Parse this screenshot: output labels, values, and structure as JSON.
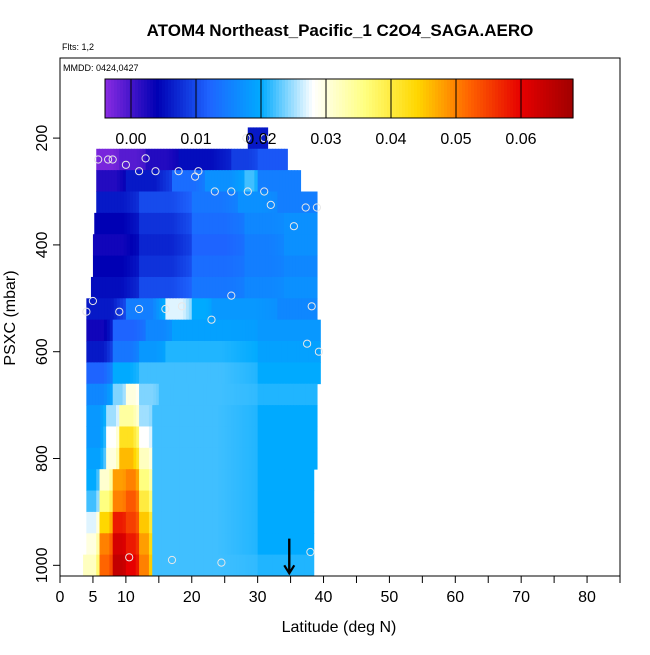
{
  "chart_data": {
    "type": "heatmap",
    "title": "ATOM4 Northeast_Pacific_1 C2O4_SAGA.AERO",
    "subtitle_flights": "Flts: 1,2",
    "subtitle_dates": "MMDD: 0424,0427",
    "xlabel": "Latitude (deg N)",
    "ylabel": "PSXC (mbar)",
    "xlim": [
      0,
      85
    ],
    "ylim": [
      1020,
      50
    ],
    "x_ticks": [
      0,
      5,
      10,
      20,
      30,
      40,
      50,
      60,
      70,
      80
    ],
    "x_tick_labels": [
      "0",
      "5",
      "10",
      "20",
      "30",
      "40",
      "50",
      "60",
      "70",
      "80"
    ],
    "x_minor_ticks": [
      15,
      25,
      35,
      45,
      55,
      65,
      75,
      85
    ],
    "y_ticks": [
      200,
      400,
      600,
      800,
      1000
    ],
    "y_tick_labels": [
      "200",
      "400",
      "600",
      "800",
      "1000"
    ],
    "colorbar": {
      "min": -0.004,
      "max": 0.068,
      "ticks": [
        0.0,
        0.01,
        0.02,
        0.03,
        0.04,
        0.05,
        0.06
      ],
      "tick_labels": [
        "0.00",
        "0.01",
        "0.02",
        "0.03",
        "0.04",
        "0.05",
        "0.06"
      ],
      "colors": [
        "#8a2be2",
        "#0000b4",
        "#1e64ff",
        "#00aaff",
        "#ffffff",
        "#ffff80",
        "#ffd700",
        "#ff6400",
        "#e60000",
        "#a00000"
      ]
    },
    "grid": false,
    "series": [
      {
        "name": "C2O4 curtain profile",
        "rows": [
          {
            "p": 200,
            "lat_min": 28.5,
            "lat_max": 31.5,
            "segs": [
              [
                28.5,
                31.5,
                0.006
              ]
            ]
          },
          {
            "p": 240,
            "lat_min": 5.5,
            "lat_max": 34.5,
            "segs": [
              [
                5.5,
                9,
                -0.003
              ],
              [
                9,
                13,
                -0.001
              ],
              [
                13,
                18,
                0.002
              ],
              [
                18,
                26,
                0.005
              ],
              [
                26,
                30,
                0.009
              ],
              [
                30,
                34.5,
                0.011
              ]
            ]
          },
          {
            "p": 280,
            "lat_min": 5.5,
            "lat_max": 36.5,
            "segs": [
              [
                5.5,
                10,
                0.002
              ],
              [
                10,
                17,
                0.006
              ],
              [
                17,
                22,
                0.013
              ],
              [
                22,
                28,
                0.017
              ],
              [
                28,
                30,
                0.022
              ],
              [
                30,
                36.5,
                0.015
              ]
            ]
          },
          {
            "p": 320,
            "lat_min": 5.5,
            "lat_max": 39,
            "segs": [
              [
                5.5,
                12,
                0.006
              ],
              [
                12,
                20,
                0.01
              ],
              [
                20,
                27,
                0.014
              ],
              [
                27,
                33,
                0.017
              ],
              [
                33,
                39,
                0.015
              ]
            ]
          },
          {
            "p": 360,
            "lat_min": 5.2,
            "lat_max": 39,
            "segs": [
              [
                5.2,
                12,
                0.004
              ],
              [
                12,
                20,
                0.008
              ],
              [
                20,
                28,
                0.013
              ],
              [
                28,
                34,
                0.016
              ],
              [
                34,
                39,
                0.017
              ]
            ]
          },
          {
            "p": 400,
            "lat_min": 5.0,
            "lat_max": 39,
            "segs": [
              [
                5,
                12,
                0.003
              ],
              [
                12,
                20,
                0.007
              ],
              [
                20,
                28,
                0.012
              ],
              [
                28,
                34,
                0.015
              ],
              [
                34,
                39,
                0.017
              ]
            ]
          },
          {
            "p": 440,
            "lat_min": 5.0,
            "lat_max": 39,
            "segs": [
              [
                5,
                12,
                0.004
              ],
              [
                12,
                20,
                0.008
              ],
              [
                20,
                28,
                0.013
              ],
              [
                28,
                34,
                0.015
              ],
              [
                34,
                39,
                0.016
              ]
            ]
          },
          {
            "p": 480,
            "lat_min": 4.7,
            "lat_max": 39,
            "segs": [
              [
                4.7,
                12,
                0.005
              ],
              [
                12,
                20,
                0.01
              ],
              [
                20,
                28,
                0.014
              ],
              [
                28,
                34,
                0.016
              ],
              [
                34,
                39,
                0.017
              ]
            ]
          },
          {
            "p": 520,
            "lat_min": 4.0,
            "lat_max": 39,
            "segs": [
              [
                4,
                10,
                0.006
              ],
              [
                10,
                16,
                0.015
              ],
              [
                16,
                20,
                0.027
              ],
              [
                20,
                23,
                0.02
              ],
              [
                23,
                33,
                0.018
              ],
              [
                33,
                39,
                0.016
              ]
            ]
          },
          {
            "p": 560,
            "lat_min": 4.0,
            "lat_max": 39.5,
            "segs": [
              [
                4,
                8,
                0.003
              ],
              [
                8,
                13,
                0.012
              ],
              [
                13,
                17,
                0.016
              ],
              [
                17,
                30,
                0.019
              ],
              [
                30,
                39.5,
                0.018
              ]
            ]
          },
          {
            "p": 600,
            "lat_min": 4.0,
            "lat_max": 39.5,
            "segs": [
              [
                4,
                8,
                0.006
              ],
              [
                8,
                12,
                0.014
              ],
              [
                12,
                16,
                0.018
              ],
              [
                16,
                30,
                0.021
              ],
              [
                30,
                39.5,
                0.019
              ]
            ]
          },
          {
            "p": 640,
            "lat_min": 4.0,
            "lat_max": 39.5,
            "segs": [
              [
                4,
                8,
                0.012
              ],
              [
                8,
                12,
                0.02
              ],
              [
                12,
                16,
                0.022
              ],
              [
                16,
                30,
                0.022
              ],
              [
                30,
                39.5,
                0.02
              ]
            ]
          },
          {
            "p": 680,
            "lat_min": 4.0,
            "lat_max": 39,
            "segs": [
              [
                4,
                8,
                0.016
              ],
              [
                8,
                10,
                0.024
              ],
              [
                10,
                12,
                0.03
              ],
              [
                12,
                15,
                0.024
              ],
              [
                15,
                30,
                0.022
              ],
              [
                30,
                39,
                0.021
              ]
            ]
          },
          {
            "p": 720,
            "lat_min": 4.0,
            "lat_max": 39,
            "segs": [
              [
                4,
                7,
                0.018
              ],
              [
                7,
                9,
                0.025
              ],
              [
                9,
                12,
                0.034
              ],
              [
                12,
                14,
                0.025
              ],
              [
                14,
                30,
                0.022
              ],
              [
                30,
                39,
                0.02
              ]
            ]
          },
          {
            "p": 760,
            "lat_min": 4.0,
            "lat_max": 39,
            "segs": [
              [
                4,
                7,
                0.018
              ],
              [
                7,
                9,
                0.028
              ],
              [
                9,
                12,
                0.042
              ],
              [
                12,
                14,
                0.028
              ],
              [
                14,
                30,
                0.022
              ],
              [
                30,
                39,
                0.02
              ]
            ]
          },
          {
            "p": 800,
            "lat_min": 4.0,
            "lat_max": 39,
            "segs": [
              [
                4,
                7,
                0.019
              ],
              [
                7,
                9,
                0.03
              ],
              [
                9,
                12,
                0.046
              ],
              [
                12,
                14,
                0.032
              ],
              [
                14,
                30,
                0.022
              ],
              [
                30,
                39,
                0.02
              ]
            ]
          },
          {
            "p": 840,
            "lat_min": 4.0,
            "lat_max": 38.5,
            "segs": [
              [
                4,
                6,
                0.02
              ],
              [
                6,
                8,
                0.031
              ],
              [
                8,
                10,
                0.048
              ],
              [
                10,
                12,
                0.05
              ],
              [
                12,
                14,
                0.036
              ],
              [
                14,
                30,
                0.022
              ],
              [
                30,
                38.5,
                0.02
              ]
            ]
          },
          {
            "p": 880,
            "lat_min": 4.0,
            "lat_max": 38.5,
            "segs": [
              [
                4,
                6,
                0.022
              ],
              [
                6,
                8,
                0.036
              ],
              [
                8,
                10,
                0.05
              ],
              [
                10,
                12,
                0.053
              ],
              [
                12,
                14,
                0.04
              ],
              [
                14,
                30,
                0.022
              ],
              [
                30,
                38.5,
                0.02
              ]
            ]
          },
          {
            "p": 920,
            "lat_min": 4.0,
            "lat_max": 38.5,
            "segs": [
              [
                4,
                6,
                0.027
              ],
              [
                6,
                8,
                0.044
              ],
              [
                8,
                10,
                0.058
              ],
              [
                10,
                12,
                0.055
              ],
              [
                12,
                14,
                0.045
              ],
              [
                14,
                30,
                0.022
              ],
              [
                30,
                38.5,
                0.02
              ]
            ]
          },
          {
            "p": 960,
            "lat_min": 4.0,
            "lat_max": 38.5,
            "segs": [
              [
                4,
                6,
                0.03
              ],
              [
                6,
                8,
                0.05
              ],
              [
                8,
                10,
                0.062
              ],
              [
                10,
                12,
                0.058
              ],
              [
                12,
                14,
                0.048
              ],
              [
                14,
                30,
                0.022
              ],
              [
                30,
                38.5,
                0.02
              ]
            ]
          },
          {
            "p": 1000,
            "lat_min": 3.5,
            "lat_max": 38.5,
            "segs": [
              [
                3.5,
                6,
                0.032
              ],
              [
                6,
                8,
                0.052
              ],
              [
                8,
                10,
                0.064
              ],
              [
                10,
                12,
                0.06
              ],
              [
                12,
                14,
                0.05
              ],
              [
                14,
                30,
                0.022
              ],
              [
                30,
                38.5,
                0.021
              ]
            ]
          }
        ]
      },
      {
        "name": "Sample points",
        "points": [
          [
            28.3,
            200
          ],
          [
            31.0,
            200
          ],
          [
            5.8,
            240
          ],
          [
            7.3,
            240
          ],
          [
            8.0,
            240
          ],
          [
            10.0,
            250
          ],
          [
            12.0,
            262
          ],
          [
            13.0,
            238
          ],
          [
            14.5,
            262
          ],
          [
            18.0,
            262
          ],
          [
            20.5,
            272
          ],
          [
            21.0,
            262
          ],
          [
            23.5,
            300
          ],
          [
            26.0,
            300
          ],
          [
            28.5,
            300
          ],
          [
            31.0,
            300
          ],
          [
            32.0,
            325
          ],
          [
            35.5,
            365
          ],
          [
            37.3,
            330
          ],
          [
            39.0,
            330
          ],
          [
            4.0,
            525
          ],
          [
            5.0,
            505
          ],
          [
            9.0,
            525
          ],
          [
            12.0,
            520
          ],
          [
            16.0,
            520
          ],
          [
            18.5,
            515
          ],
          [
            23.0,
            540
          ],
          [
            26.0,
            495
          ],
          [
            37.5,
            585
          ],
          [
            38.2,
            515
          ],
          [
            39.3,
            600
          ],
          [
            10.5,
            985
          ],
          [
            17.0,
            990
          ],
          [
            24.5,
            995
          ],
          [
            38.0,
            975
          ]
        ]
      }
    ],
    "annotations": [
      {
        "type": "arrow",
        "lat": 34.8,
        "p_start": 950,
        "p_end": 1015
      }
    ]
  }
}
